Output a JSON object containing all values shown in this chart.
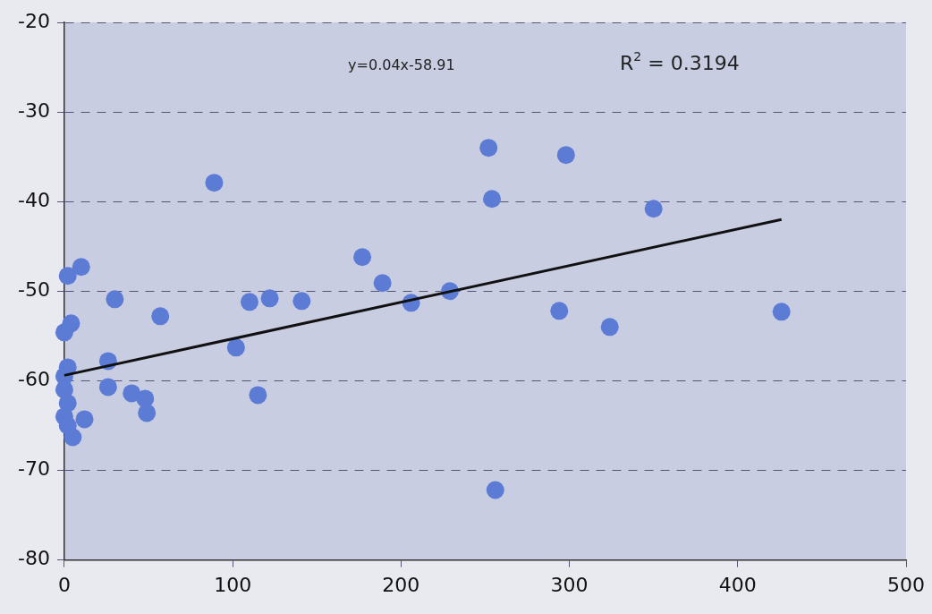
{
  "chart_data": {
    "type": "scatter",
    "annotations": [
      "y=0.04x-58.91",
      "R$^{2}$ = 0.3194"
    ],
    "xlim": [
      0,
      500
    ],
    "xticks": [
      0,
      100,
      200,
      300,
      400,
      500
    ],
    "ylim": [
      -80,
      -20
    ],
    "yticks": [
      -80,
      -70,
      -60,
      -50,
      -40,
      -30,
      -20
    ],
    "grid": "y",
    "legend": false,
    "marker": "circle",
    "series": [
      {
        "color": "#5b7bd5",
        "x": [
          0,
          2,
          10,
          4,
          2,
          0,
          0,
          2,
          0,
          2,
          5,
          12,
          26,
          26,
          30,
          40,
          48,
          49,
          57,
          89,
          102,
          110,
          115,
          122,
          141,
          177,
          189,
          206,
          229,
          252,
          254,
          256,
          294,
          298,
          324,
          350,
          426
        ],
        "values": [
          -54.6,
          -48.3,
          -47.3,
          -53.6,
          -58.5,
          -59.5,
          -61,
          -62.5,
          -64,
          -65,
          -66.3,
          -64.3,
          -57.8,
          -60.7,
          -50.9,
          -61.4,
          -62,
          -63.6,
          -52.8,
          -37.9,
          -56.3,
          -51.2,
          -61.6,
          -50.8,
          -51.1,
          -46.2,
          -49.1,
          -51.3,
          -50,
          -34,
          -39.7,
          -72.2,
          -52.2,
          -34.8,
          -54,
          -40.8,
          -52.3
        ]
      },
      {
        "type": "line",
        "color": "#111111",
        "marker": "none",
        "line_style": "solid",
        "x": [
          0,
          426
        ],
        "values": [
          -59.4,
          -42
        ]
      }
    ]
  }
}
